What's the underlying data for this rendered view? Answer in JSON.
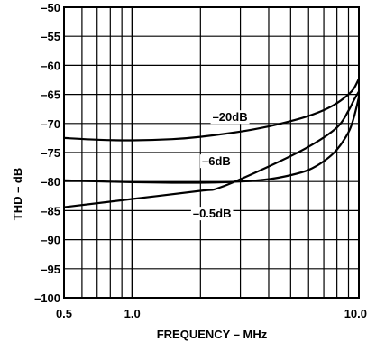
{
  "chart_data": {
    "type": "line",
    "xlabel": "FREQUENCY – MHz",
    "ylabel": "THD – dB",
    "xscale": "log",
    "xlim": [
      0.5,
      10.0
    ],
    "ylim": [
      -100,
      -50
    ],
    "x_ticks": [
      {
        "value": 0.5,
        "label": "0.5"
      },
      {
        "value": 1.0,
        "label": "1.0"
      },
      {
        "value": 10.0,
        "label": "10.0"
      }
    ],
    "y_ticks": [
      {
        "value": -50,
        "label": "–50"
      },
      {
        "value": -55,
        "label": "–55"
      },
      {
        "value": -60,
        "label": "–60"
      },
      {
        "value": -65,
        "label": "–65"
      },
      {
        "value": -70,
        "label": "–70"
      },
      {
        "value": -75,
        "label": "–75"
      },
      {
        "value": -80,
        "label": "–80"
      },
      {
        "value": -85,
        "label": "–85"
      },
      {
        "value": -90,
        "label": "–90"
      },
      {
        "value": -95,
        "label": "–95"
      },
      {
        "value": -100,
        "label": "–100"
      }
    ],
    "grid": true,
    "series": [
      {
        "name": "–20dB",
        "x": [
          0.5,
          0.7,
          1.0,
          1.5,
          2.0,
          3.0,
          4.0,
          5.0,
          6.0,
          7.0,
          8.0,
          9.0,
          9.5,
          10.0
        ],
        "y": [
          -72.5,
          -72.8,
          -72.9,
          -72.7,
          -72.3,
          -71.4,
          -70.5,
          -69.6,
          -68.7,
          -67.7,
          -66.5,
          -65.0,
          -64.0,
          -62.3
        ],
        "label_at": {
          "x": 2.7,
          "y": -69.6
        }
      },
      {
        "name": "–6dB",
        "x": [
          0.5,
          1.0,
          2.0,
          3.0,
          4.0,
          5.0,
          6.0,
          7.0,
          8.0,
          9.0,
          9.5,
          10.0
        ],
        "y": [
          -79.8,
          -80.1,
          -80.2,
          -80.0,
          -79.6,
          -78.9,
          -78.0,
          -76.5,
          -74.5,
          -71.5,
          -69.0,
          -65.5
        ],
        "label_at": {
          "x": 2.35,
          "y": -77.2
        }
      },
      {
        "name": "–0.5dB",
        "x": [
          0.5,
          1.0,
          2.0,
          2.45,
          4.0,
          6.0,
          8.0,
          9.0,
          9.5,
          10.0
        ],
        "y": [
          -84.4,
          -83.0,
          -81.6,
          -81.0,
          -77.4,
          -74.0,
          -70.7,
          -67.8,
          -66.0,
          -64.5
        ],
        "label_at": {
          "x": 2.25,
          "y": -86.2
        }
      }
    ]
  }
}
